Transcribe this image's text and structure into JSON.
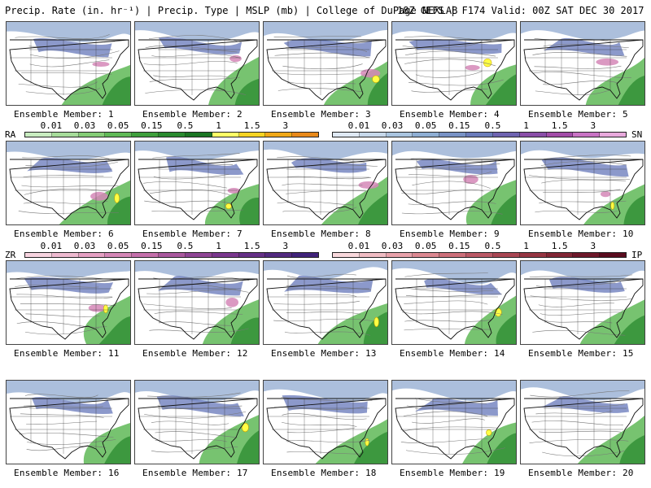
{
  "header": {
    "left": "Precip. Rate (in. hr⁻¹) | Precip. Type | MSLP (mb) | College of DuPage NEXLAB",
    "right": "18Z GEFS | F174 Valid: 00Z SAT DEC 30 2017"
  },
  "members": [
    {
      "label": "Ensemble Member: 1"
    },
    {
      "label": "Ensemble Member: 2"
    },
    {
      "label": "Ensemble Member: 3"
    },
    {
      "label": "Ensemble Member: 4"
    },
    {
      "label": "Ensemble Member: 5"
    },
    {
      "label": "Ensemble Member: 6"
    },
    {
      "label": "Ensemble Member: 7"
    },
    {
      "label": "Ensemble Member: 8"
    },
    {
      "label": "Ensemble Member: 9"
    },
    {
      "label": "Ensemble Member: 10"
    },
    {
      "label": "Ensemble Member: 11"
    },
    {
      "label": "Ensemble Member: 12"
    },
    {
      "label": "Ensemble Member: 13"
    },
    {
      "label": "Ensemble Member: 14"
    },
    {
      "label": "Ensemble Member: 15"
    },
    {
      "label": "Ensemble Member: 16"
    },
    {
      "label": "Ensemble Member: 17"
    },
    {
      "label": "Ensemble Member: 18"
    },
    {
      "label": "Ensemble Member: 19"
    },
    {
      "label": "Ensemble Member: 20"
    }
  ],
  "legends": {
    "rain": {
      "code": "RA",
      "ticks": [
        "0.01",
        "0.03",
        "0.05",
        "0.15",
        "0.5",
        "1",
        "1.5",
        "3"
      ],
      "colors": [
        "#c8ecc0",
        "#a6dc9a",
        "#84cc76",
        "#5fb957",
        "#3e9f3c",
        "#2a8a2f",
        "#1b7523",
        "#ffff66",
        "#f6d323",
        "#f0a818",
        "#e8891a"
      ]
    },
    "snow": {
      "code": "SN",
      "ticks": [
        "0.01",
        "0.03",
        "0.05",
        "0.15",
        "0.5",
        "1",
        "1.5",
        "3"
      ],
      "colors": [
        "#dfe9f4",
        "#c6d8ea",
        "#a9c4df",
        "#8eaed3",
        "#7892c5",
        "#6a7bba",
        "#6e63b0",
        "#8a4ea8",
        "#a24ca8",
        "#c873c4",
        "#e8a9dc"
      ]
    },
    "freezing_rain": {
      "code": "ZR",
      "ticks": [
        "0.01",
        "0.03",
        "0.05",
        "0.15",
        "0.5",
        "1",
        "1.5",
        "3"
      ],
      "colors": [
        "#f7d4e0",
        "#eebad0",
        "#e5a0c3",
        "#d587b7",
        "#c46fab",
        "#a9589e",
        "#8f4595",
        "#7a378e",
        "#653087",
        "#522a80",
        "#40237a"
      ]
    },
    "ice_pellets": {
      "code": "IP",
      "ticks": [
        "0.01",
        "0.03",
        "0.05",
        "0.15",
        "0.5",
        "1",
        "1.5",
        "3"
      ],
      "colors": [
        "#f8d8dc",
        "#f0bcc3",
        "#e8a1aa",
        "#dc8891",
        "#cd6f7a",
        "#bb5966",
        "#a94653",
        "#963542",
        "#822635",
        "#6e182a",
        "#5a0c1f"
      ]
    }
  }
}
